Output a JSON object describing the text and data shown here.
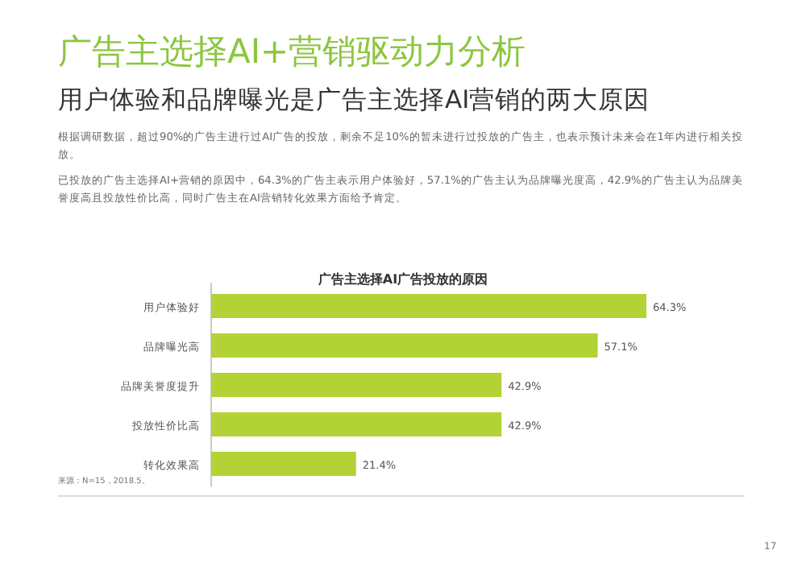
{
  "chart_data": {
    "type": "bar",
    "orientation": "horizontal",
    "title": "广告主选择AI+营销驱动力分析",
    "subtitle": "用户体验和品牌曝光是广告主选择AI营销的两大原因",
    "xlabel": "广告主选择AI广告投放的原因",
    "categories": [
      "用户体验好",
      "品牌曝光高",
      "品牌美誉度提升",
      "投放性价比高",
      "转化效果高"
    ],
    "values": [
      64.3,
      57.1,
      42.9,
      42.9,
      21.4
    ],
    "value_labels": [
      "64.3%",
      "57.1%",
      "42.9%",
      "42.9%",
      "21.4%"
    ],
    "color": "#b2d235",
    "annotations": [
      "根据调研数据，超过90%的广告主进行过AI广告的投放，剩余不足10%的暂未进行过投放的广告主，也表示预计未来会在1年内进行相关投放。",
      "已投放的广告主选择AI+营销的原因中，64.3%的广告主表示用户体验好，57.1%的广告主认为品牌曝光度高，42.9%的广告主认为品牌美誉度高且投放性价比高，同时广告主在AI营销转化效果方面给予肯定。",
      "来源：N=15，2018.5。",
      "17"
    ]
  }
}
